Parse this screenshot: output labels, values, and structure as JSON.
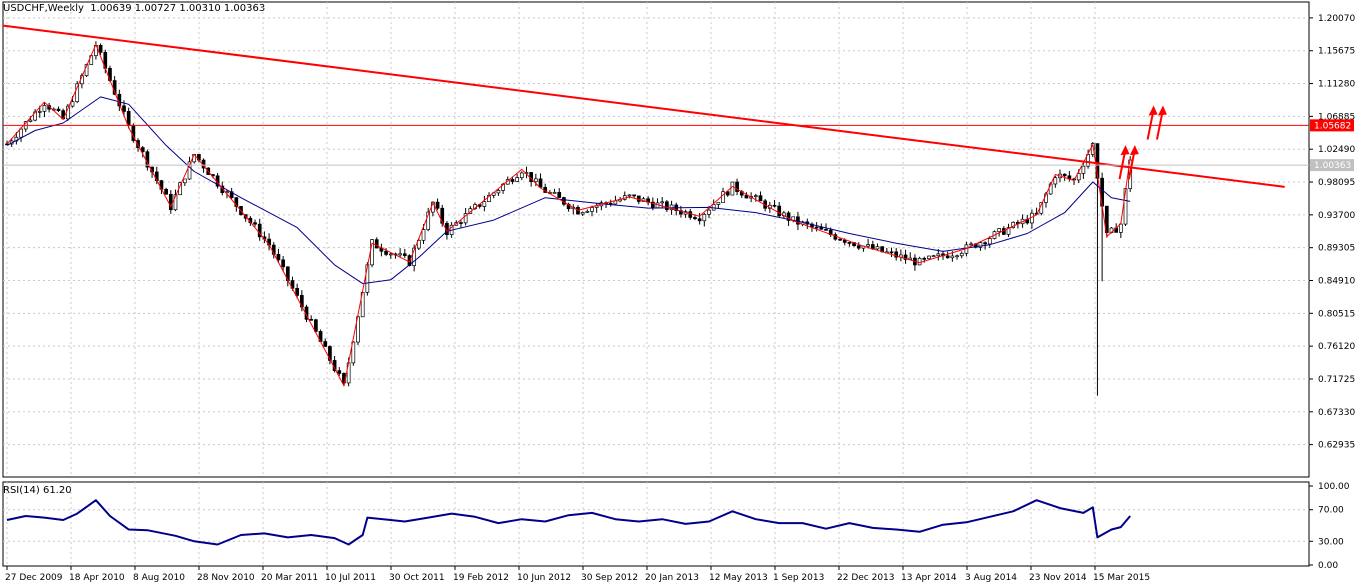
{
  "header": {
    "symbol_tf": "USDCHF,Weekly",
    "ohlc": "1.00639 1.00727 1.00310 1.00363"
  },
  "rsi_header": "RSI(14) 61.20",
  "chart_data": {
    "type": "candlestick",
    "price_axis": {
      "ylim": [
        0.586,
        1.222
      ],
      "ticks": [
        "1.20070",
        "1.15675",
        "1.11280",
        "1.06885",
        "1.02490",
        "0.98095",
        "0.93700",
        "0.89305",
        "0.84910",
        "0.80515",
        "0.76120",
        "0.71725",
        "0.67330",
        "0.62935"
      ],
      "grid": true
    },
    "rsi_axis": {
      "ylim": [
        0,
        100
      ],
      "ticks": [
        "100.00",
        "70.00",
        "30.00",
        "0.00"
      ],
      "levels": [
        70,
        30
      ]
    },
    "time_axis": {
      "labels": [
        "27 Dec 2009",
        "18 Apr 2010",
        "8 Aug 2010",
        "28 Nov 2010",
        "20 Mar 2011",
        "10 Jul 2011",
        "30 Oct 2011",
        "19 Feb 2012",
        "10 Jun 2012",
        "30 Sep 2012",
        "20 Jan 2013",
        "12 May 2013",
        "1 Sep 2013",
        "22 Dec 2013",
        "13 Apr 2014",
        "3 Aug 2014",
        "23 Nov 2014",
        "15 Mar 2015"
      ],
      "week_span": 280
    },
    "horizontal_line": {
      "value": 1.05682,
      "label": "1.05682",
      "color": "#ff0000"
    },
    "current_price": {
      "value": 1.00363,
      "label": "1.00363",
      "color": "#c0c0c0"
    },
    "trendline": {
      "start": {
        "week": -1,
        "value": 1.1905
      },
      "end": {
        "week": 273,
        "value": 0.9745
      },
      "color": "#ff0000"
    },
    "zigzag": {
      "color": "#ff0000",
      "points": [
        [
          0,
          1.032
        ],
        [
          8,
          1.088
        ],
        [
          12,
          1.065
        ],
        [
          19,
          1.165
        ],
        [
          26,
          1.054
        ],
        [
          35,
          0.948
        ],
        [
          40,
          1.018
        ],
        [
          56,
          0.897
        ],
        [
          72,
          0.708
        ],
        [
          78,
          0.899
        ],
        [
          86,
          0.874
        ],
        [
          91,
          0.953
        ],
        [
          94,
          0.915
        ],
        [
          110,
          0.998
        ],
        [
          114,
          0.973
        ],
        [
          122,
          0.943
        ],
        [
          133,
          0.961
        ],
        [
          148,
          0.935
        ],
        [
          155,
          0.975
        ],
        [
          168,
          0.929
        ],
        [
          183,
          0.895
        ],
        [
          195,
          0.873
        ],
        [
          205,
          0.892
        ],
        [
          220,
          0.937
        ],
        [
          224,
          0.991
        ],
        [
          228,
          0.983
        ],
        [
          232,
          1.031
        ],
        [
          235,
          0.908
        ],
        [
          238,
          0.925
        ],
        [
          240,
          1.013
        ]
      ]
    },
    "moving_average": {
      "color": "#00008b",
      "points": [
        [
          0,
          1.03
        ],
        [
          6,
          1.05
        ],
        [
          12,
          1.06
        ],
        [
          20,
          1.095
        ],
        [
          26,
          1.085
        ],
        [
          34,
          1.03
        ],
        [
          40,
          0.995
        ],
        [
          50,
          0.96
        ],
        [
          62,
          0.92
        ],
        [
          70,
          0.87
        ],
        [
          76,
          0.845
        ],
        [
          82,
          0.85
        ],
        [
          88,
          0.88
        ],
        [
          94,
          0.915
        ],
        [
          104,
          0.93
        ],
        [
          115,
          0.96
        ],
        [
          127,
          0.952
        ],
        [
          137,
          0.946
        ],
        [
          150,
          0.947
        ],
        [
          160,
          0.94
        ],
        [
          170,
          0.927
        ],
        [
          180,
          0.912
        ],
        [
          190,
          0.899
        ],
        [
          200,
          0.888
        ],
        [
          210,
          0.897
        ],
        [
          218,
          0.912
        ],
        [
          226,
          0.94
        ],
        [
          232,
          0.981
        ],
        [
          236,
          0.96
        ],
        [
          240,
          0.955
        ]
      ]
    },
    "arrows": {
      "color": "#ff0000",
      "tips": [
        [
          239,
          1.025
        ],
        [
          241,
          1.025
        ],
        [
          245,
          1.078
        ],
        [
          247,
          1.078
        ]
      ]
    },
    "rsi_series": {
      "color": "#00008b",
      "points": [
        [
          0,
          57
        ],
        [
          4,
          62
        ],
        [
          8,
          60
        ],
        [
          12,
          57
        ],
        [
          15,
          65
        ],
        [
          19,
          82
        ],
        [
          22,
          62
        ],
        [
          26,
          45
        ],
        [
          30,
          44
        ],
        [
          36,
          37
        ],
        [
          40,
          30
        ],
        [
          45,
          26
        ],
        [
          50,
          38
        ],
        [
          55,
          40
        ],
        [
          60,
          35
        ],
        [
          65,
          38
        ],
        [
          70,
          34
        ],
        [
          73,
          26
        ],
        [
          76,
          38
        ],
        [
          77,
          60
        ],
        [
          85,
          55
        ],
        [
          90,
          60
        ],
        [
          95,
          65
        ],
        [
          100,
          61
        ],
        [
          105,
          53
        ],
        [
          110,
          58
        ],
        [
          115,
          55
        ],
        [
          120,
          63
        ],
        [
          125,
          66
        ],
        [
          130,
          58
        ],
        [
          135,
          55
        ],
        [
          140,
          58
        ],
        [
          145,
          52
        ],
        [
          150,
          55
        ],
        [
          155,
          68
        ],
        [
          160,
          58
        ],
        [
          165,
          53
        ],
        [
          170,
          53
        ],
        [
          175,
          46
        ],
        [
          180,
          53
        ],
        [
          185,
          47
        ],
        [
          190,
          45
        ],
        [
          195,
          42
        ],
        [
          200,
          51
        ],
        [
          205,
          54
        ],
        [
          210,
          61
        ],
        [
          215,
          68
        ],
        [
          220,
          82
        ],
        [
          225,
          72
        ],
        [
          230,
          66
        ],
        [
          232,
          73
        ],
        [
          233,
          35
        ],
        [
          236,
          45
        ],
        [
          238,
          48
        ],
        [
          240,
          62
        ]
      ]
    },
    "candles": {
      "up": "#000000",
      "down": "#000000",
      "up_fill": "#ffffff",
      "down_fill": "#000000"
    }
  }
}
